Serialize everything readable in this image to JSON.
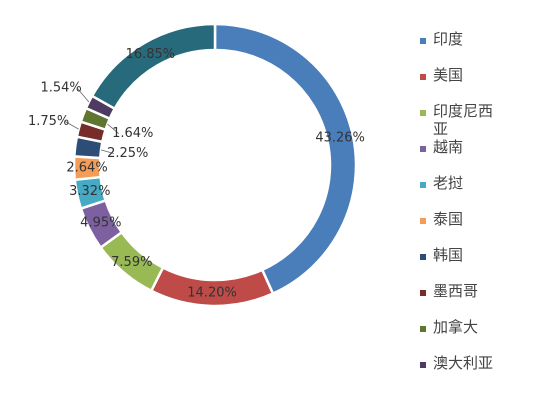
{
  "chart_data": {
    "type": "donut",
    "categories": [
      "印度",
      "美国",
      "印度尼西亚",
      "越南",
      "老挝",
      "泰国",
      "韩国",
      "墨西哥",
      "加拿大",
      "澳大利亚",
      null
    ],
    "values": [
      43.26,
      14.2,
      7.59,
      4.95,
      3.32,
      2.64,
      2.25,
      1.75,
      1.64,
      1.54,
      16.85
    ],
    "value_labels": [
      "43.26%",
      "14.20%",
      "7.59%",
      "4.95%",
      "3.32%",
      "2.64%",
      "2.25%",
      "1.75%",
      "1.64%",
      "1.54%",
      "16.85%"
    ],
    "colors": [
      "#4a7ebb",
      "#be4b48",
      "#98b954",
      "#7d60a0",
      "#46aac4",
      "#f59d56",
      "#2c4d75",
      "#772c2a",
      "#5f7530",
      "#4d3b62",
      "#276a7c"
    ],
    "legend": "right"
  }
}
